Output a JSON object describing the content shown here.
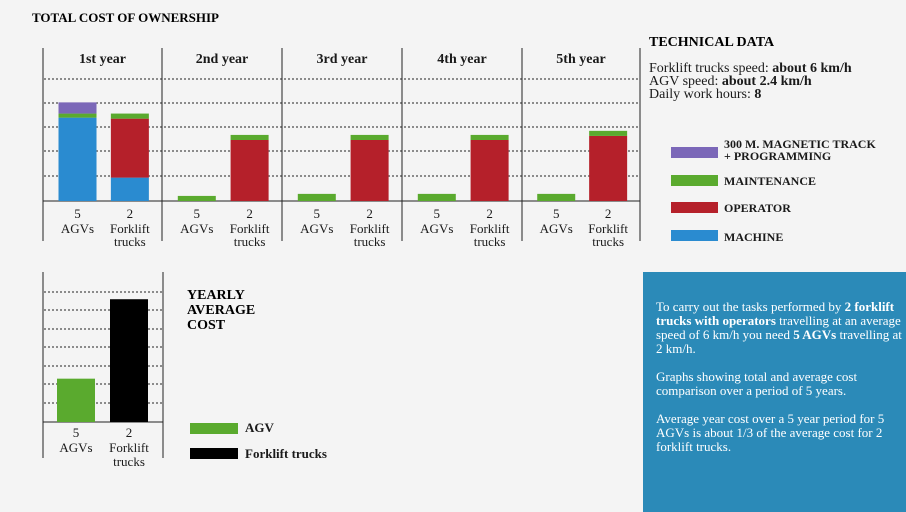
{
  "title": "TOTAL COST OF OWNERSHIP",
  "technical": {
    "heading": "TECHNICAL DATA",
    "line1_label": "Forklift trucks speed: ",
    "line1_value": "about 6 km/h",
    "line2_label": "AGV speed: ",
    "line2_value": "about 2.4 km/h",
    "line3_label": "Daily work hours: ",
    "line3_value": "8"
  },
  "legend": [
    {
      "label": "300 M. MAGNETIC TRACK + PROGRAMMING",
      "line1": "300 M. MAGNETIC TRACK",
      "line2": "+ PROGRAMMING",
      "color": "#7b67b8"
    },
    {
      "label": "MAINTENANCE",
      "color": "#5aaa2e"
    },
    {
      "label": "OPERATOR",
      "color": "#b5202a"
    },
    {
      "label": "MACHINE",
      "color": "#2a8bd0"
    }
  ],
  "yearly": {
    "title_lines": [
      "YEARLY",
      "AVERAGE",
      "COST"
    ],
    "legend": [
      {
        "label": "AGV",
        "color": "#5aaa2e"
      },
      {
        "label": "Forklift trucks",
        "color": "#000000"
      }
    ]
  },
  "info": {
    "p1_a": "To carry out the tasks performed by ",
    "p1_b": "2 forklift trucks with operators",
    "p1_c": " travelling at an average speed of 6 km/h you need ",
    "p1_d": "5 AGVs",
    "p1_e": " travelling at 2 km/h.",
    "p2": "Graphs showing total and average cost comparison over a period of 5 years.",
    "p3": "Average year cost over a 5 year period for 5 AGVs is about 1/3 of the average cost for 2 forklift trucks."
  },
  "chart_data": [
    {
      "type": "bar",
      "stacked": true,
      "title": "TOTAL COST OF OWNERSHIP",
      "groups": [
        "1st year",
        "2nd year",
        "3rd year",
        "4th year",
        "5th year"
      ],
      "categories": [
        {
          "count": "5",
          "name": "AGVs"
        },
        {
          "count": "2",
          "name": "Forklift trucks",
          "name_lines": [
            "Forklift",
            "trucks"
          ]
        }
      ],
      "ylim": [
        0,
        6
      ],
      "grid": true,
      "series": [
        {
          "name": "MACHINE",
          "color": "#2a8bd0",
          "values": [
            [
              4.1,
              1.15
            ],
            [
              0,
              0
            ],
            [
              0,
              0
            ],
            [
              0,
              0
            ],
            [
              0,
              0
            ]
          ]
        },
        {
          "name": "OPERATOR",
          "color": "#b5202a",
          "values": [
            [
              0,
              2.9
            ],
            [
              0,
              3.0
            ],
            [
              0,
              3.0
            ],
            [
              0,
              3.0
            ],
            [
              0,
              3.2
            ]
          ]
        },
        {
          "name": "MAINTENANCE",
          "color": "#5aaa2e",
          "values": [
            [
              0.2,
              0.25
            ],
            [
              0.25,
              0.25
            ],
            [
              0.35,
              0.25
            ],
            [
              0.35,
              0.25
            ],
            [
              0.35,
              0.25
            ]
          ]
        },
        {
          "name": "300 M. MAGNETIC TRACK + PROGRAMMING",
          "color": "#7b67b8",
          "values": [
            [
              0.55,
              0
            ],
            [
              0,
              0
            ],
            [
              0,
              0
            ],
            [
              0,
              0
            ],
            [
              0,
              0
            ]
          ]
        }
      ]
    },
    {
      "type": "bar",
      "title": "YEARLY AVERAGE COST",
      "categories": [
        {
          "count": "5",
          "name": "AGVs",
          "color": "#5aaa2e"
        },
        {
          "count": "2",
          "name": "Forklift trucks",
          "name_lines": [
            "Forklift",
            "trucks"
          ],
          "color": "#000000"
        }
      ],
      "values": [
        1.2,
        3.4
      ],
      "ylim": [
        0,
        3.6
      ],
      "grid": true
    }
  ]
}
